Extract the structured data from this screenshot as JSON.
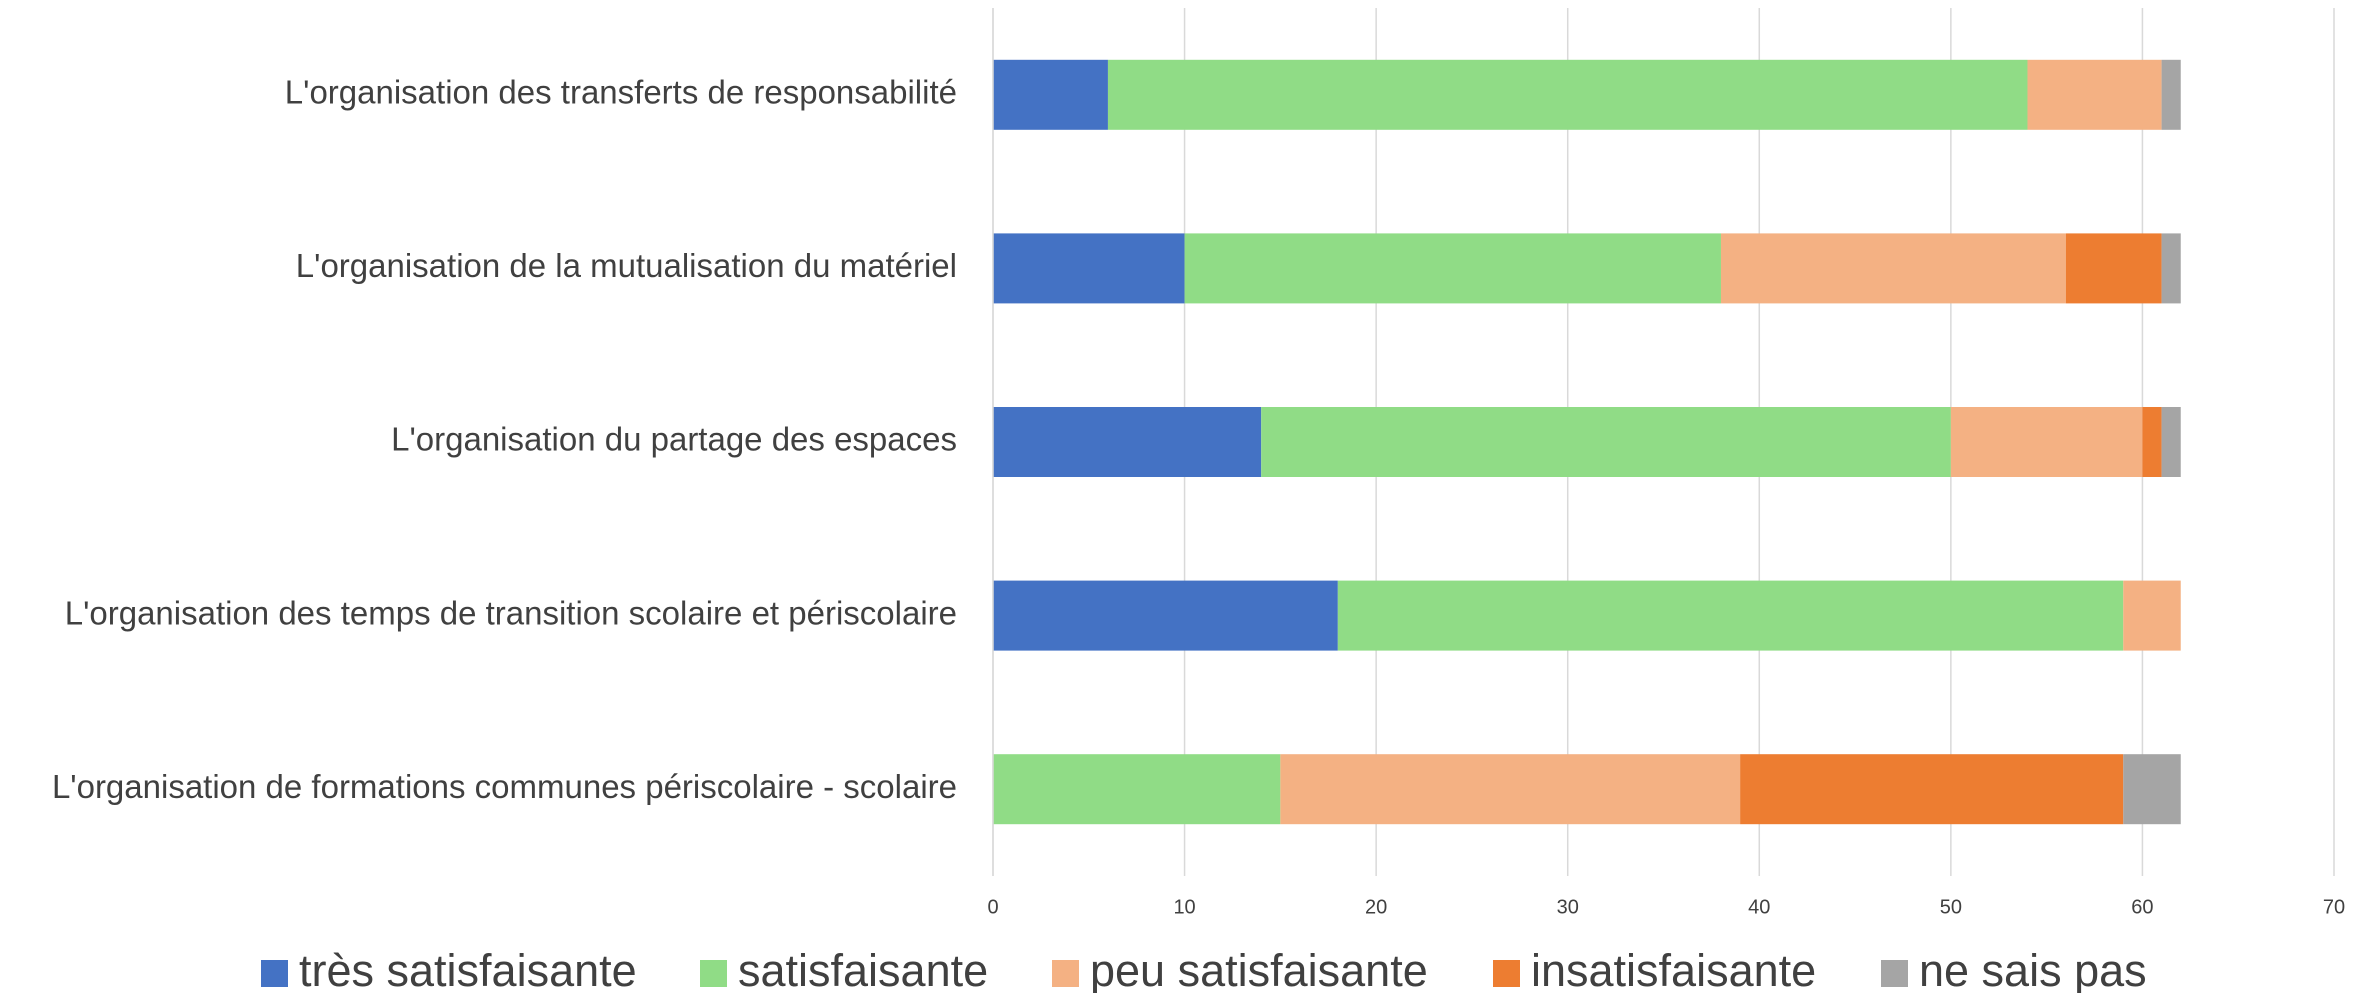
{
  "chart_data": {
    "type": "stacked_barh",
    "categories": [
      "L'organisation des transferts de responsabilité",
      "L'organisation de la mutualisation du matériel",
      "L'organisation du partage des espaces",
      "L'organisation des temps de transition scolaire et périscolaire",
      "L'organisation de formations communes périscolaire - scolaire"
    ],
    "series": [
      {
        "name": "très satisfaisante",
        "color": "#4472c4",
        "values": [
          6,
          10,
          14,
          18,
          0
        ]
      },
      {
        "name": "satisfaisante",
        "color": "#90dc86",
        "values": [
          48,
          28,
          36,
          41,
          15
        ]
      },
      {
        "name": "peu satisfaisante",
        "color": "#f4b183",
        "values": [
          7,
          18,
          10,
          3,
          24
        ]
      },
      {
        "name": "insatisfaisante",
        "color": "#ed7d31",
        "values": [
          0,
          5,
          1,
          0,
          20
        ]
      },
      {
        "name": "ne sais pas",
        "color": "#a5a5a5",
        "values": [
          1,
          1,
          1,
          0,
          3
        ]
      }
    ],
    "xlim": [
      0,
      70
    ],
    "xticks": [
      0,
      10,
      20,
      30,
      40,
      50,
      60,
      70
    ],
    "grid": true,
    "legend": "bottom"
  }
}
